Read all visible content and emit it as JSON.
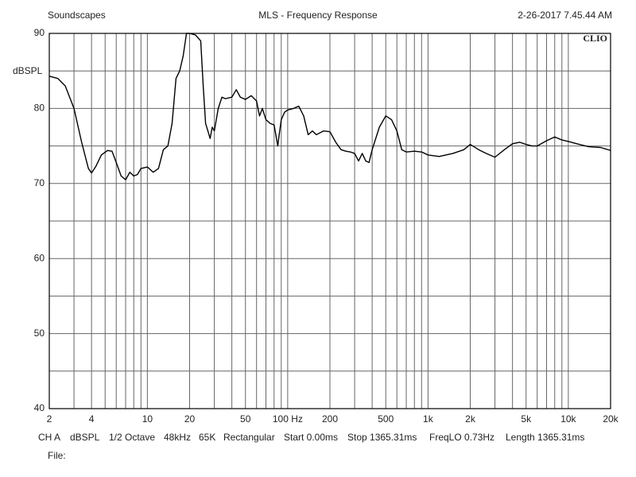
{
  "chart_data": {
    "type": "line",
    "header_left": "Soundscapes",
    "title": "MLS - Frequency Response",
    "header_right": "2-26-2017 7.45.44 AM",
    "logo": "CLIO",
    "ylabel": "dBSPL",
    "footer": [
      "CH A",
      "dBSPL",
      "1/2 Octave",
      "48kHz",
      "65K",
      "Rectangular",
      "Start 0.00ms",
      "Stop 1365.31ms",
      "FreqLO 0.73Hz",
      "Length 1365.31ms"
    ],
    "file_label": "File:",
    "xscale": "log",
    "xlim": [
      2,
      20000
    ],
    "ylim": [
      40,
      90
    ],
    "xticks": [
      2,
      4,
      10,
      20,
      50,
      {
        "value": 100,
        "label": "100 Hz"
      },
      200,
      500,
      {
        "value": 1000,
        "label": "1k"
      },
      {
        "value": 2000,
        "label": "2k"
      },
      {
        "value": 5000,
        "label": "5k"
      },
      {
        "value": 10000,
        "label": "10k"
      },
      {
        "value": 20000,
        "label": "20k"
      }
    ],
    "xgrid": [
      2,
      3,
      4,
      5,
      6,
      7,
      8,
      9,
      10,
      20,
      30,
      40,
      50,
      60,
      70,
      80,
      90,
      100,
      200,
      300,
      400,
      500,
      600,
      700,
      800,
      900,
      1000,
      2000,
      3000,
      4000,
      5000,
      6000,
      7000,
      8000,
      9000,
      10000,
      20000
    ],
    "yticks": [
      40,
      50,
      60,
      70,
      80,
      90
    ],
    "ygrid": [
      45,
      55,
      65,
      75,
      85
    ],
    "grid": true,
    "x": [
      2,
      2.3,
      2.6,
      3,
      3.4,
      3.8,
      4,
      4.3,
      4.7,
      5.2,
      5.6,
      6,
      6.5,
      7,
      7.5,
      8,
      8.5,
      9,
      10,
      11,
      12,
      13,
      14,
      15,
      16,
      17,
      18,
      19,
      20,
      22,
      24,
      25,
      26,
      27,
      28,
      29,
      30,
      32,
      34,
      36,
      40,
      43,
      46,
      50,
      55,
      60,
      63,
      66,
      70,
      75,
      80,
      85,
      87,
      90,
      95,
      100,
      110,
      120,
      130,
      140,
      150,
      160,
      180,
      200,
      220,
      240,
      260,
      280,
      300,
      320,
      340,
      360,
      380,
      400,
      450,
      500,
      550,
      600,
      650,
      700,
      800,
      900,
      1000,
      1200,
      1500,
      1800,
      2000,
      2300,
      2600,
      3000,
      3500,
      4000,
      4500,
      5000,
      5500,
      6000,
      7000,
      8000,
      9000,
      10000,
      12000,
      14000,
      17000,
      20000
    ],
    "series": [
      {
        "color": "#000000",
        "values": [
          84.3,
          84.0,
          83,
          80,
          75.5,
          72,
          71.4,
          72.3,
          73.8,
          74.4,
          74.3,
          72.8,
          71,
          70.5,
          71.5,
          71,
          71.2,
          72,
          72.2,
          71.5,
          72,
          74.5,
          75,
          78,
          84,
          85,
          87,
          90,
          90,
          89.8,
          89,
          83,
          78,
          77,
          76,
          77.5,
          77,
          80,
          81.5,
          81.3,
          81.5,
          82.5,
          81.5,
          81.2,
          81.7,
          81,
          79,
          80,
          78.5,
          78,
          77.8,
          75,
          76.5,
          78.5,
          79.5,
          79.8,
          80,
          80.3,
          79,
          76.5,
          77,
          76.5,
          77,
          76.9,
          75.5,
          74.5,
          74.3,
          74.2,
          74,
          73,
          74,
          73,
          72.8,
          74.5,
          77.5,
          79,
          78.5,
          77,
          74.5,
          74.2,
          74.3,
          74.2,
          73.8,
          73.6,
          74,
          74.5,
          75.2,
          74.5,
          74,
          73.5,
          74.5,
          75.3,
          75.5,
          75.2,
          75,
          75,
          75.7,
          76.2,
          75.8,
          75.6,
          75.2,
          74.9,
          74.8,
          74.4
        ]
      }
    ]
  }
}
